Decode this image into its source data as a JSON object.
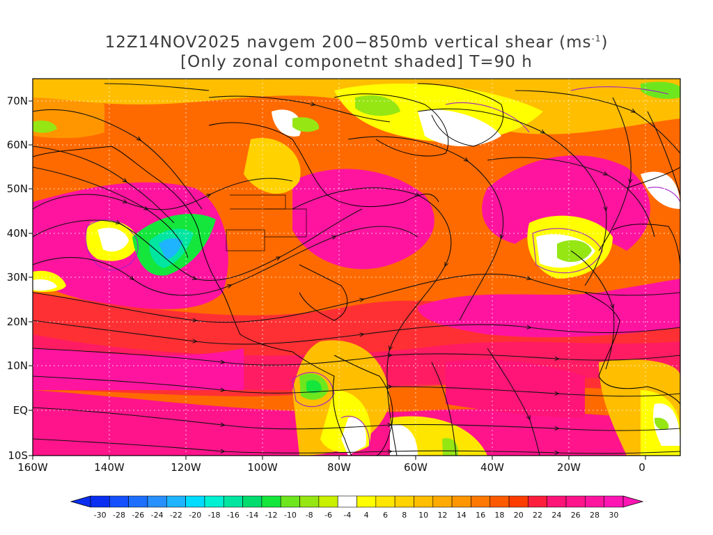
{
  "title": {
    "line1_main": "12Z14NOV2025 navgem 200−850mb vertical shear (ms",
    "line1_sup": "-1",
    "line1_end": ")",
    "line2": "[Only zonal componetnt shaded] T=90 h"
  },
  "map": {
    "lat_labels": [
      "70N",
      "60N",
      "50N",
      "40N",
      "30N",
      "20N",
      "10N",
      "EQ",
      "10S"
    ],
    "lon_labels": [
      "160W",
      "140W",
      "120W",
      "100W",
      "80W",
      "60W",
      "40W",
      "20W",
      "0"
    ]
  },
  "colorbar": {
    "labels": [
      "-30",
      "-28",
      "-26",
      "-24",
      "-22",
      "-20",
      "-18",
      "-16",
      "-14",
      "-12",
      "-10",
      "-8",
      "-6",
      "-4",
      "4",
      "6",
      "8",
      "10",
      "12",
      "14",
      "16",
      "18",
      "20",
      "22",
      "24",
      "26",
      "28",
      "30"
    ],
    "colors": [
      "#0a2ff0",
      "#1450ff",
      "#1e6eff",
      "#2891ff",
      "#1eb4ff",
      "#00dcff",
      "#00f0d2",
      "#00e6a0",
      "#00dc6e",
      "#14e63c",
      "#6ee61e",
      "#96e614",
      "#c8f000",
      "#ffffff",
      "#ffff00",
      "#ffe600",
      "#ffd200",
      "#ffbe00",
      "#ffaa00",
      "#ff9600",
      "#ff7800",
      "#ff5a00",
      "#ff3c00",
      "#ff1e3c",
      "#ff1478",
      "#ff148c",
      "#ff14a0",
      "#ff14b4"
    ]
  }
}
